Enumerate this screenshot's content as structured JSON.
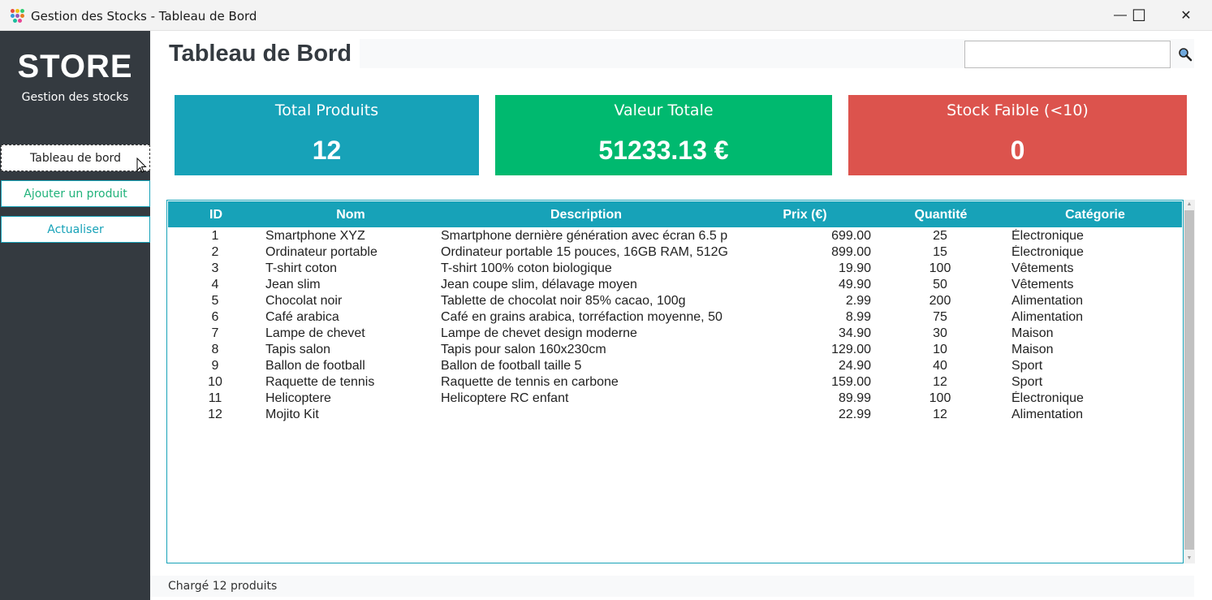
{
  "window": {
    "title": "Gestion des Stocks - Tableau de Bord",
    "minimize_glyph": "—",
    "maximize_glyph": "☐",
    "close_glyph": "✕"
  },
  "sidebar": {
    "brand": "STORE",
    "subtitle": "Gestion des stocks",
    "items": [
      {
        "label": "Tableau de bord"
      },
      {
        "label": "Ajouter un produit"
      },
      {
        "label": "Actualiser"
      }
    ]
  },
  "header": {
    "title": "Tableau de Bord",
    "search_value": ""
  },
  "cards": [
    {
      "label": "Total Produits",
      "value": "12",
      "color": "#17a2b8"
    },
    {
      "label": "Valeur Totale",
      "value": "51233.13 €",
      "color": "#00b96f"
    },
    {
      "label": "Stock Faible (<10)",
      "value": "0",
      "color": "#dc534d"
    }
  ],
  "table": {
    "columns": [
      "ID",
      "Nom",
      "Description",
      "Prix (€)",
      "Quantité",
      "Catégorie"
    ],
    "rows": [
      [
        "1",
        "Smartphone XYZ",
        "Smartphone dernière génération avec écran 6.5 p",
        "699.00",
        "25",
        "Électronique"
      ],
      [
        "2",
        "Ordinateur portable",
        "Ordinateur portable 15 pouces, 16GB RAM, 512G",
        "899.00",
        "15",
        "Électronique"
      ],
      [
        "3",
        "T-shirt coton",
        "T-shirt 100% coton biologique",
        "19.90",
        "100",
        "Vêtements"
      ],
      [
        "4",
        "Jean slim",
        "Jean coupe slim, délavage moyen",
        "49.90",
        "50",
        "Vêtements"
      ],
      [
        "5",
        "Chocolat noir",
        "Tablette de chocolat noir 85% cacao, 100g",
        "2.99",
        "200",
        "Alimentation"
      ],
      [
        "6",
        "Café arabica",
        "Café en grains arabica, torréfaction moyenne, 50",
        "8.99",
        "75",
        "Alimentation"
      ],
      [
        "7",
        "Lampe de chevet",
        "Lampe de chevet design moderne",
        "34.90",
        "30",
        "Maison"
      ],
      [
        "8",
        "Tapis salon",
        "Tapis pour salon 160x230cm",
        "129.00",
        "10",
        "Maison"
      ],
      [
        "9",
        "Ballon de football",
        "Ballon de football taille 5",
        "24.90",
        "40",
        "Sport"
      ],
      [
        "10",
        "Raquette de tennis",
        "Raquette de tennis en carbone",
        "159.00",
        "12",
        "Sport"
      ],
      [
        "11",
        "Helicoptere",
        "Helicoptere RC enfant",
        "89.99",
        "100",
        "Électronique"
      ],
      [
        "12",
        "Mojito Kit",
        "",
        "22.99",
        "12",
        "Alimentation"
      ]
    ]
  },
  "status": {
    "text": "Chargé 12 produits"
  }
}
